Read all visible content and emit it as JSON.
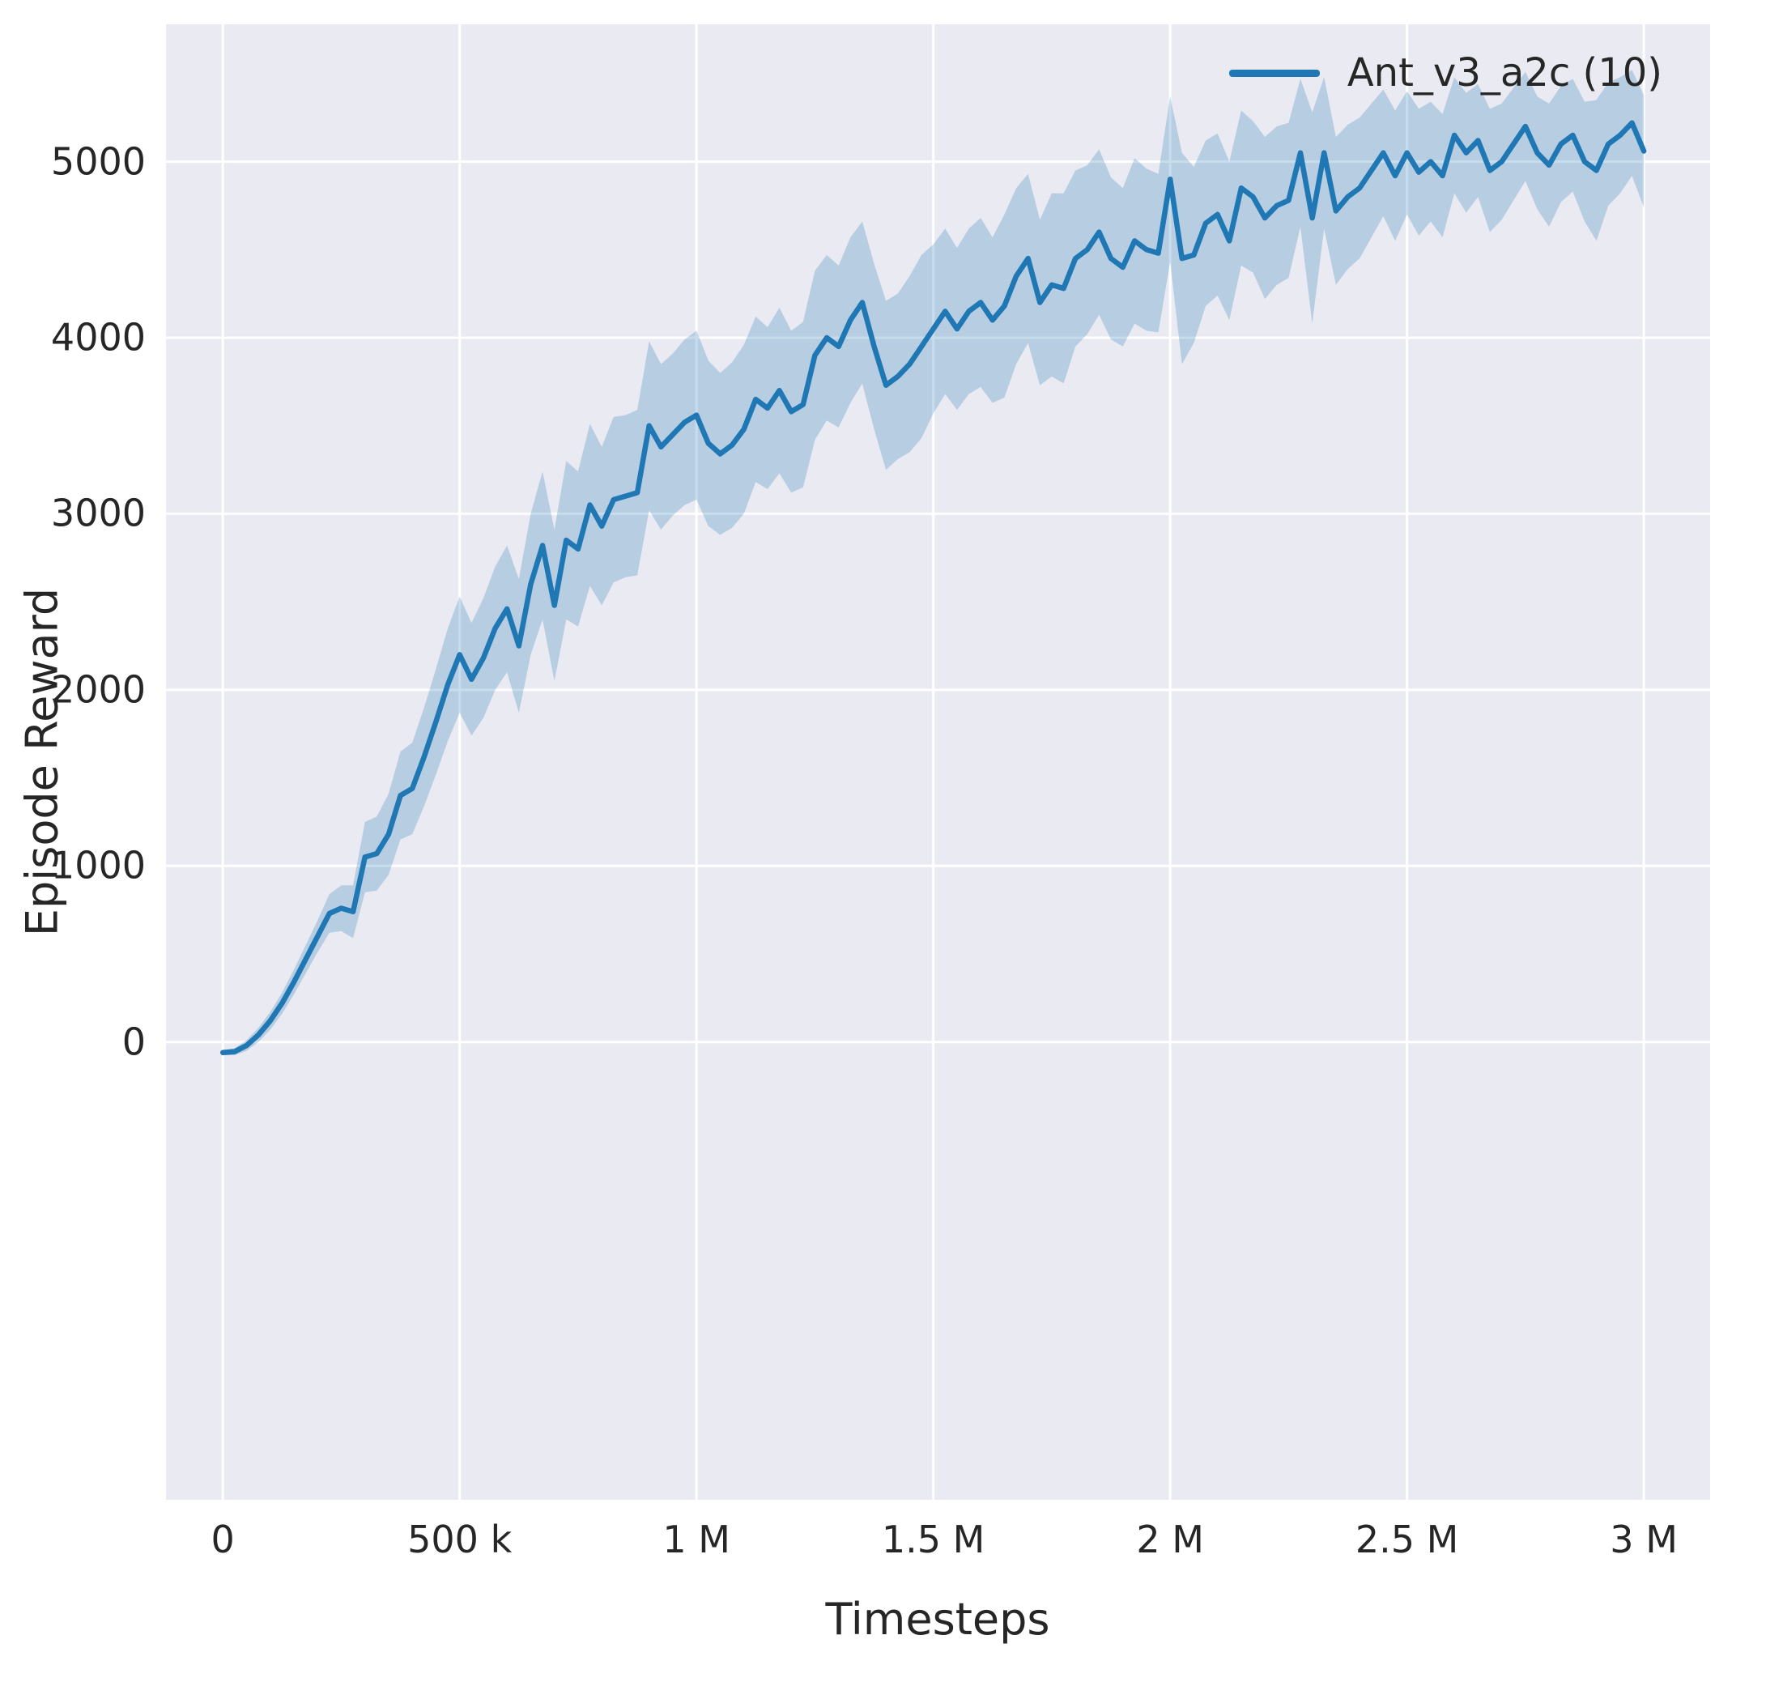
{
  "figure": {
    "xlabel": "Timesteps",
    "ylabel": "Episode Reward",
    "legend_label": "Ant_v3_a2c (10)"
  },
  "style": {
    "accent_color": "#1f77b4",
    "band_color": "rgba(31,119,180,0.25)",
    "plot_bg": "#eaeaf2",
    "grid_color": "#ffffff",
    "text_color": "#262626"
  },
  "chart_data": {
    "type": "line",
    "title": "",
    "xlabel": "Timesteps",
    "ylabel": "Episode Reward",
    "grid": true,
    "legend_position": "upper right",
    "xlim": [
      -120000,
      3140000
    ],
    "ylim": [
      -2600,
      5780
    ],
    "xticks": [
      {
        "value": 0,
        "label": "0"
      },
      {
        "value": 500000,
        "label": "500 k"
      },
      {
        "value": 1000000,
        "label": "1 M"
      },
      {
        "value": 1500000,
        "label": "1.5 M"
      },
      {
        "value": 2000000,
        "label": "2 M"
      },
      {
        "value": 2500000,
        "label": "2.5 M"
      },
      {
        "value": 3000000,
        "label": "3 M"
      }
    ],
    "yticks": [
      {
        "value": 0,
        "label": "0"
      },
      {
        "value": 1000,
        "label": "1000"
      },
      {
        "value": 2000,
        "label": "2000"
      },
      {
        "value": 3000,
        "label": "3000"
      },
      {
        "value": 4000,
        "label": "4000"
      },
      {
        "value": 5000,
        "label": "5000"
      }
    ],
    "series": [
      {
        "name": "Ant_v3_a2c (10)",
        "color": "#1f77b4",
        "x_start": 0,
        "x_step": 25000,
        "y": [
          -60,
          -55,
          -20,
          40,
          120,
          220,
          340,
          470,
          600,
          730,
          760,
          740,
          1050,
          1070,
          1180,
          1400,
          1440,
          1620,
          1820,
          2030,
          2200,
          2060,
          2180,
          2350,
          2460,
          2250,
          2600,
          2820,
          2480,
          2850,
          2800,
          3050,
          2930,
          3080,
          3100,
          3120,
          3500,
          3380,
          3450,
          3520,
          3560,
          3400,
          3340,
          3390,
          3480,
          3650,
          3600,
          3700,
          3580,
          3620,
          3900,
          4000,
          3950,
          4100,
          4200,
          3950,
          3730,
          3780,
          3850,
          3950,
          4050,
          4150,
          4050,
          4150,
          4200,
          4100,
          4180,
          4350,
          4450,
          4200,
          4300,
          4280,
          4450,
          4500,
          4600,
          4450,
          4400,
          4550,
          4500,
          4480,
          4900,
          4450,
          4470,
          4650,
          4700,
          4550,
          4850,
          4800,
          4680,
          4750,
          4780,
          5050,
          4680,
          5050,
          4720,
          4800,
          4850,
          4950,
          5050,
          4920,
          5050,
          4940,
          5000,
          4920,
          5150,
          5050,
          5120,
          4950,
          5000,
          5100,
          5200,
          5050,
          4980,
          5100,
          5150,
          5000,
          4950,
          5100,
          5150,
          5220,
          5060
        ],
        "band_half_width": [
          15,
          20,
          30,
          40,
          50,
          60,
          70,
          80,
          90,
          110,
          130,
          150,
          200,
          210,
          230,
          250,
          260,
          280,
          300,
          320,
          330,
          320,
          340,
          350,
          360,
          380,
          400,
          420,
          430,
          450,
          440,
          460,
          450,
          470,
          460,
          470,
          480,
          470,
          460,
          470,
          480,
          470,
          460,
          470,
          480,
          470,
          460,
          470,
          460,
          470,
          480,
          470,
          460,
          470,
          460,
          470,
          480,
          470,
          500,
          520,
          480,
          470,
          460,
          470,
          480,
          470,
          520,
          500,
          480,
          470,
          520,
          540,
          500,
          480,
          470,
          460,
          450,
          470,
          460,
          450,
          470,
          600,
          500,
          470,
          460,
          450,
          440,
          430,
          460,
          450,
          440,
          420,
          600,
          430,
          420,
          410,
          400,
          380,
          360,
          370,
          350,
          360,
          340,
          350,
          330,
          340,
          320,
          350,
          330,
          320,
          310,
          320,
          350,
          330,
          320,
          340,
          400,
          350,
          330,
          300,
          320
        ]
      }
    ]
  }
}
